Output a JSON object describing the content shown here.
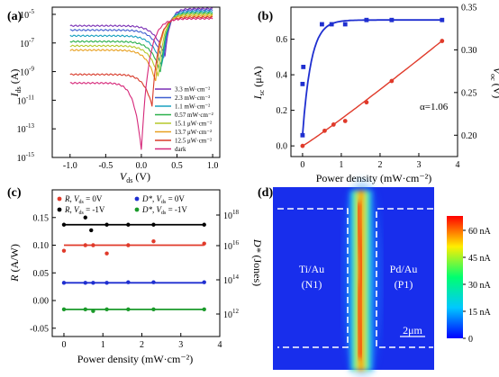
{
  "panels": {
    "a": {
      "label": "(a)",
      "chart_data": {
        "type": "line",
        "xlabel_main": "V",
        "xlabel_sub": "ds",
        "xlabel_unit": " (V)",
        "ylabel_main": "I",
        "ylabel_sub": "ds",
        "ylabel_unit": " (A)",
        "xlim": [
          -1.25,
          1.1
        ],
        "ylim_log10": [
          -15,
          -4.5
        ],
        "xticks": [
          "-1.0",
          "-0.5",
          "0.0",
          "0.5",
          "1.0"
        ],
        "yticks": [
          {
            "base": "10",
            "exp": "-5"
          },
          {
            "base": "10",
            "exp": "-7"
          },
          {
            "base": "10",
            "exp": "-9"
          },
          {
            "base": "10",
            "exp": "-11"
          },
          {
            "base": "10",
            "exp": "-13"
          },
          {
            "base": "10",
            "exp": "-15"
          }
        ],
        "series": [
          {
            "name": "3.3 mW·cm⁻²",
            "color": "#7a2fb5",
            "vmin": 0.33,
            "left_log": -5.8,
            "right_log": -4.6
          },
          {
            "name": "2.3 mW·cm⁻²",
            "color": "#3f5fd0",
            "vmin": 0.31,
            "left_log": -6.1,
            "right_log": -4.7
          },
          {
            "name": "1.1 mW·cm⁻²",
            "color": "#18a0c0",
            "vmin": 0.29,
            "left_log": -6.5,
            "right_log": -4.8
          },
          {
            "name": "0.57 mW·cm⁻²",
            "color": "#2ab04a",
            "vmin": 0.27,
            "left_log": -6.9,
            "right_log": -4.9
          },
          {
            "name": "15.1 μW·cm⁻²",
            "color": "#b5c82a",
            "vmin": 0.24,
            "left_log": -7.2,
            "right_log": -5.0
          },
          {
            "name": "13.7 μW·cm⁻²",
            "color": "#e8a020",
            "vmin": 0.2,
            "left_log": -7.5,
            "right_log": -5.1
          },
          {
            "name": "12.5 μW·cm⁻²",
            "color": "#d83a2a",
            "vmin": 0.15,
            "left_log": -9.2,
            "right_log": -5.2
          },
          {
            "name": "dark",
            "color": "#d6287a",
            "vmin": 0.0,
            "left_log": -9.8,
            "right_log": -5.3
          }
        ]
      }
    },
    "b": {
      "label": "(b)",
      "chart_data": {
        "type": "scatter",
        "xlabel": "Power density (mW·cm⁻²)",
        "ylabel_left_main": "I",
        "ylabel_left_sub": "sc",
        "ylabel_left_unit": " (μA)",
        "ylabel_right_main": "V",
        "ylabel_right_sub": "oc",
        "ylabel_right_unit": " (V)",
        "xlim": [
          -0.3,
          4
        ],
        "ylim_left": [
          -0.06,
          0.78
        ],
        "ylim_right": [
          0.175,
          0.35
        ],
        "xticks": [
          "0",
          "1",
          "2",
          "3",
          "4"
        ],
        "yticks_left": [
          "0.0",
          "0.2",
          "0.4",
          "0.6"
        ],
        "yticks_right": [
          "0.20",
          "0.25",
          "0.30",
          "0.35"
        ],
        "annotation": "α=1.06",
        "series": [
          {
            "name": "I_sc",
            "color": "#e03a2a",
            "marker": "circle",
            "axis": "left",
            "x": [
              0.0,
              0.57,
              0.8,
              1.1,
              1.65,
              2.3,
              3.6
            ],
            "y": [
              0.0,
              0.085,
              0.12,
              0.14,
              0.245,
              0.365,
              0.59
            ]
          },
          {
            "name": "V_oc",
            "color": "#1f2fd0",
            "marker": "square",
            "axis": "right",
            "x": [
              0.0,
              0.0,
              0.02,
              0.5,
              0.75,
              1.1,
              1.65,
              2.3,
              3.6
            ],
            "y": [
              0.2,
              0.26,
              0.28,
              0.33,
              0.33,
              0.33,
              0.335,
              0.335,
              0.335
            ]
          }
        ]
      }
    },
    "c": {
      "label": "(c)",
      "chart_data": {
        "type": "scatter",
        "xlabel": "Power density (mW·cm⁻²)",
        "ylabel_left_main": "R",
        "ylabel_left_unit": " (A/W)",
        "ylabel_right_main": "D*",
        "ylabel_right_unit": " (Jones)",
        "xlim": [
          -0.3,
          4
        ],
        "ylim_left": [
          -0.065,
          0.2
        ],
        "xticks": [
          "0",
          "1",
          "2",
          "3",
          "4"
        ],
        "yticks_left": [
          "-0.05",
          "0.00",
          "0.05",
          "0.10",
          "0.15"
        ],
        "yticks_right": [
          {
            "base": "10",
            "exp": "18"
          },
          {
            "base": "10",
            "exp": "16"
          },
          {
            "base": "10",
            "exp": "14"
          },
          {
            "base": "10",
            "exp": "12"
          }
        ],
        "legend": [
          {
            "main": "R",
            "sep": ", ",
            "v": "V",
            "sub": "ds",
            "rest": " =  0V",
            "color": "#e03a2a"
          },
          {
            "main": "R",
            "sep": ", ",
            "v": "V",
            "sub": "ds",
            "rest": " = -1V",
            "color": "#000000"
          },
          {
            "main": "D*",
            "sep": ", ",
            "v": "V",
            "sub": "ds",
            "rest": " =  0V",
            "color": "#1f2fd0"
          },
          {
            "main": "D*",
            "sep": ", ",
            "v": "V",
            "sub": "ds",
            "rest": " = -1V",
            "color": "#1a9a2a"
          }
        ],
        "series": [
          {
            "color": "#000000",
            "line": 0.137,
            "x": [
              0.0,
              0.55,
              0.7,
              1.1,
              1.65,
              2.3,
              3.6
            ],
            "y": [
              0.137,
              0.15,
              0.127,
              0.137,
              0.137,
              0.137,
              0.137
            ]
          },
          {
            "color": "#e03a2a",
            "line": 0.1,
            "x": [
              0.0,
              0.55,
              0.75,
              1.1,
              1.65,
              2.3,
              3.6
            ],
            "y": [
              0.09,
              0.1,
              0.1,
              0.085,
              0.1,
              0.107,
              0.103
            ]
          },
          {
            "color": "#1f2fd0",
            "line": 0.032,
            "x": [
              0.0,
              0.55,
              0.75,
              1.1,
              1.65,
              2.3,
              3.6
            ],
            "y": [
              0.032,
              0.032,
              0.032,
              0.032,
              0.033,
              0.033,
              0.033
            ]
          },
          {
            "color": "#1a9a2a",
            "line": -0.016,
            "x": [
              0.0,
              0.55,
              0.75,
              1.1,
              1.65,
              2.3,
              3.6
            ],
            "y": [
              -0.016,
              -0.016,
              -0.019,
              -0.016,
              -0.016,
              -0.016,
              -0.016
            ]
          }
        ]
      }
    },
    "d": {
      "label": "(d)",
      "chart_data": {
        "type": "heatmap",
        "left_label": [
          "Ti/Au",
          "(N1)"
        ],
        "right_label": [
          "Pd/Au",
          "(P1)"
        ],
        "scalebar": "2μm",
        "colorbar_ticks": [
          "60 nA",
          "45 nA",
          "30 nA",
          "15 nA",
          "0"
        ],
        "colorbar_values": [
          60,
          45,
          30,
          15,
          0
        ],
        "colorbar_range": [
          0,
          68
        ]
      }
    }
  }
}
